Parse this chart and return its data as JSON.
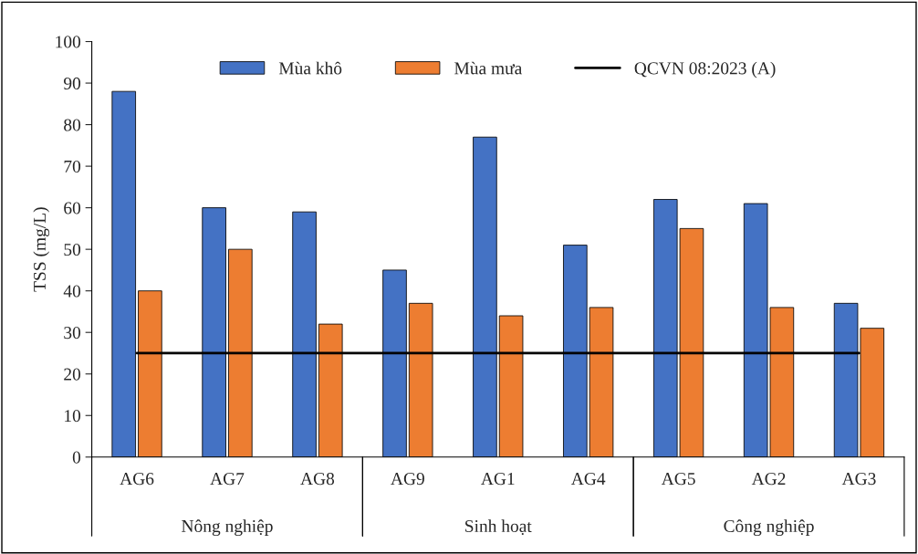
{
  "chart_data": {
    "type": "bar",
    "ylabel": "TSS (mg/L)",
    "categories": [
      "AG6",
      "AG7",
      "AG8",
      "AG9",
      "AG1",
      "AG4",
      "AG5",
      "AG2",
      "AG3"
    ],
    "series": [
      {
        "name": "Mùa khô",
        "color": "#4472c4",
        "values": [
          88,
          60,
          59,
          45,
          77,
          51,
          62,
          61,
          37
        ]
      },
      {
        "name": "Mùa mưa",
        "color": "#ed7d31",
        "values": [
          40,
          50,
          32,
          37,
          34,
          36,
          55,
          36,
          31
        ]
      },
      {
        "name": "QCVN 08:2023 (A)",
        "type": "line",
        "color": "#000000",
        "values": [
          25,
          25,
          25,
          25,
          25,
          25,
          25,
          25,
          25
        ]
      }
    ],
    "ylim": [
      0,
      100
    ],
    "yticks": [
      0,
      10,
      20,
      30,
      40,
      50,
      60,
      70,
      80,
      90,
      100
    ],
    "annotations": [
      "Nông nghiệp",
      "Sinh hoạt",
      "Công nghiệp"
    ],
    "grid": false,
    "legend": "top",
    "marker": "none"
  }
}
